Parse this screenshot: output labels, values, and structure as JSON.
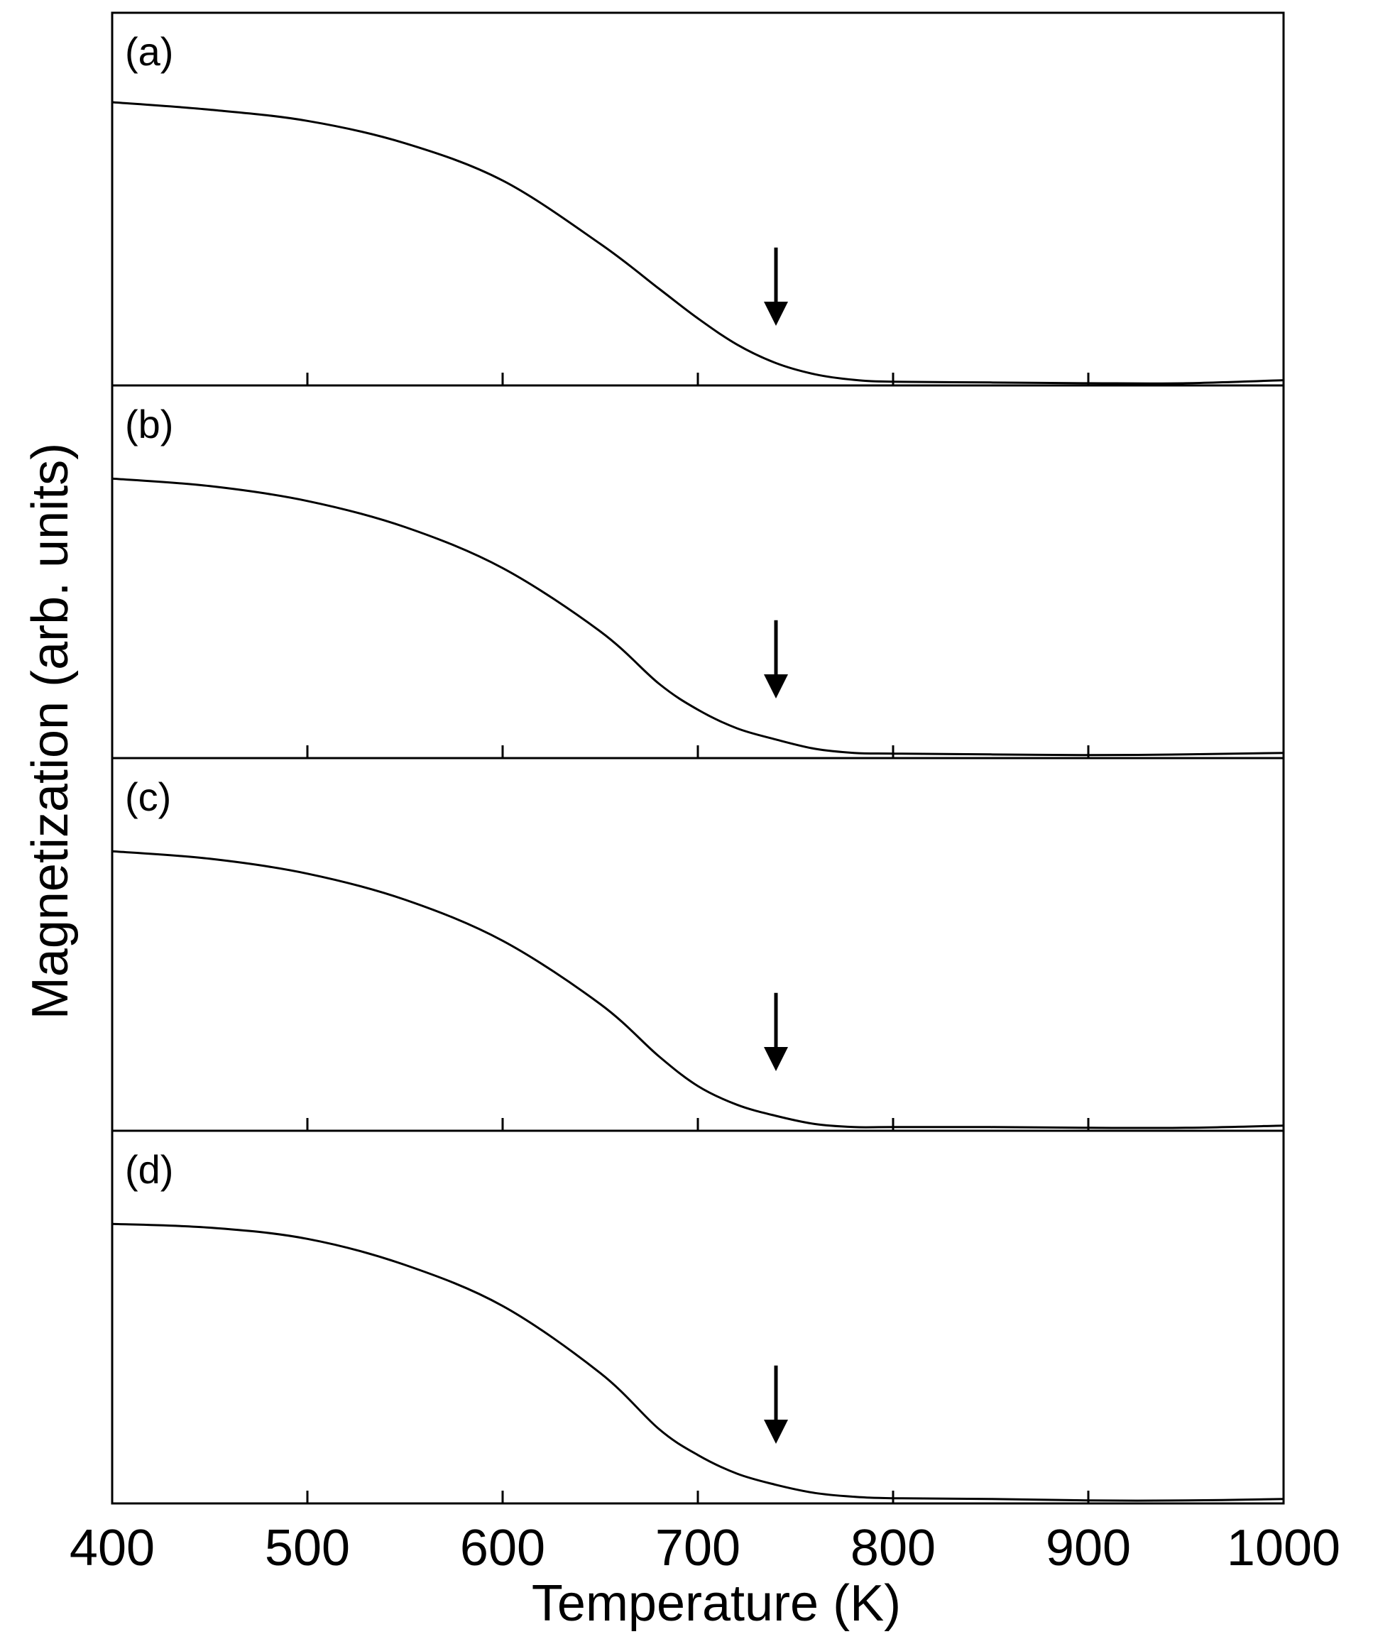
{
  "chart_data": {
    "type": "line",
    "layout": "4 vertically stacked panels sharing x-axis",
    "xlabel": "Temperature (K)",
    "ylabel": "Magnetization (arb. units)",
    "xlim": [
      400,
      1000
    ],
    "ylim": [
      0,
      1
    ],
    "x_ticks": [
      400,
      500,
      600,
      700,
      800,
      900,
      1000
    ],
    "x_tick_labels": [
      "400",
      "500",
      "600",
      "700",
      "800",
      "900",
      "1000"
    ],
    "grid": false,
    "legend": "none",
    "line_color": "#000000",
    "panels": [
      {
        "label": "(a)",
        "arrow_at_x": 740,
        "series": [
          {
            "x": [
              400,
              450,
              500,
              550,
              600,
              650,
              680,
              700,
              720,
              740,
              760,
              780,
              800,
              850,
              900,
              950,
              1000
            ],
            "y": [
              0.76,
              0.74,
              0.71,
              0.65,
              0.55,
              0.38,
              0.26,
              0.18,
              0.11,
              0.06,
              0.03,
              0.015,
              0.01,
              0.008,
              0.006,
              0.006,
              0.014
            ]
          }
        ]
      },
      {
        "label": "(b)",
        "arrow_at_x": 740,
        "series": [
          {
            "x": [
              400,
              450,
              500,
              550,
              600,
              650,
              680,
              700,
              720,
              740,
              760,
              780,
              800,
              850,
              900,
              950,
              1000
            ],
            "y": [
              0.75,
              0.73,
              0.69,
              0.62,
              0.51,
              0.34,
              0.2,
              0.13,
              0.08,
              0.05,
              0.025,
              0.014,
              0.012,
              0.01,
              0.008,
              0.01,
              0.014
            ]
          }
        ]
      },
      {
        "label": "(c)",
        "arrow_at_x": 740,
        "series": [
          {
            "x": [
              400,
              450,
              500,
              550,
              600,
              650,
              680,
              700,
              720,
              740,
              760,
              780,
              800,
              850,
              900,
              950,
              1000
            ],
            "y": [
              0.75,
              0.73,
              0.69,
              0.62,
              0.51,
              0.34,
              0.2,
              0.12,
              0.07,
              0.04,
              0.018,
              0.01,
              0.01,
              0.01,
              0.008,
              0.008,
              0.014
            ]
          }
        ]
      },
      {
        "label": "(d)",
        "arrow_at_x": 740,
        "series": [
          {
            "x": [
              400,
              450,
              500,
              550,
              600,
              650,
              680,
              700,
              720,
              740,
              760,
              780,
              800,
              850,
              900,
              950,
              1000
            ],
            "y": [
              0.75,
              0.74,
              0.71,
              0.64,
              0.53,
              0.35,
              0.2,
              0.13,
              0.08,
              0.05,
              0.028,
              0.018,
              0.014,
              0.012,
              0.008,
              0.008,
              0.012
            ]
          }
        ]
      }
    ]
  }
}
